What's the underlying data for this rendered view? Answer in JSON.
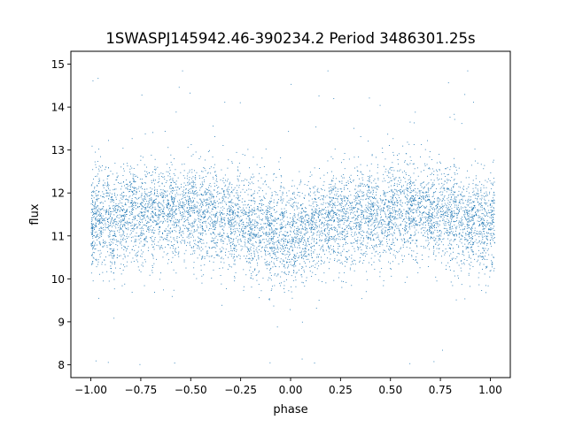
{
  "chart_data": {
    "type": "scatter",
    "title": "1SWASPJ145942.46-390234.2 Period 3486301.25s",
    "xlabel": "phase",
    "ylabel": "flux",
    "xlim": [
      -1.1,
      1.1
    ],
    "ylim": [
      7.7,
      15.3
    ],
    "xticks": [
      -1.0,
      -0.75,
      -0.5,
      -0.25,
      0.0,
      0.25,
      0.5,
      0.75,
      1.0
    ],
    "xtick_labels": [
      "−1.00",
      "−0.75",
      "−0.50",
      "−0.25",
      "0.00",
      "0.25",
      "0.50",
      "0.75",
      "1.00"
    ],
    "yticks": [
      8,
      9,
      10,
      11,
      12,
      13,
      14,
      15
    ],
    "ytick_labels": [
      "8",
      "9",
      "10",
      "11",
      "12",
      "13",
      "14",
      "15"
    ],
    "grid": false,
    "legend": "none",
    "point_color": "#1f77b4",
    "series": [
      {
        "x": [
          -1.0,
          -0.99,
          -0.97,
          -0.95,
          -0.92,
          -0.9,
          -0.88,
          -0.85,
          -0.83,
          -0.8,
          -0.78,
          -0.75,
          -0.73,
          -0.7,
          -0.68,
          -0.65,
          -0.62,
          -0.6,
          -0.58,
          -0.55,
          -0.52,
          -0.5,
          -0.48,
          -0.45,
          -0.43,
          -0.4,
          -0.38,
          -0.35,
          -0.32,
          -0.3,
          -0.28,
          -0.25,
          -0.22,
          -0.2,
          -0.18,
          -0.15,
          -0.12,
          -0.1,
          -0.08,
          -0.05,
          -0.03,
          0.0,
          0.02,
          0.05,
          0.07,
          0.1,
          0.12,
          0.15,
          0.18,
          0.2,
          0.22,
          0.25,
          0.27,
          0.3,
          0.33,
          0.35,
          0.38,
          0.4,
          0.42,
          0.45,
          0.48,
          0.5,
          0.52,
          0.55,
          0.58,
          0.6,
          0.62,
          0.65,
          0.68,
          0.7,
          0.72,
          0.75,
          0.78,
          0.8,
          0.82,
          0.85,
          0.88,
          0.9,
          0.92,
          0.95,
          0.97,
          1.0
        ],
        "y": [
          11.4,
          11.2,
          11.5,
          11.3,
          11.6,
          11.1,
          11.4,
          11.5,
          11.3,
          11.6,
          11.5,
          11.4,
          11.6,
          11.5,
          11.7,
          11.4,
          11.6,
          11.5,
          11.6,
          11.5,
          11.7,
          11.5,
          11.6,
          11.4,
          11.7,
          11.6,
          11.5,
          11.3,
          11.5,
          11.4,
          11.3,
          11.5,
          11.2,
          11.3,
          11.1,
          11.2,
          11.0,
          11.1,
          11.0,
          11.2,
          10.9,
          11.1,
          11.0,
          11.2,
          11.1,
          11.3,
          11.2,
          11.4,
          11.3,
          11.5,
          11.4,
          11.3,
          11.5,
          11.4,
          11.6,
          11.5,
          11.4,
          11.6,
          11.5,
          11.4,
          11.6,
          11.5,
          11.7,
          11.6,
          11.5,
          11.7,
          11.6,
          11.5,
          11.7,
          11.6,
          11.4,
          11.6,
          11.5,
          11.4,
          11.5,
          11.3,
          11.4,
          11.2,
          11.4,
          11.3,
          11.2,
          11.4
        ]
      }
    ]
  }
}
